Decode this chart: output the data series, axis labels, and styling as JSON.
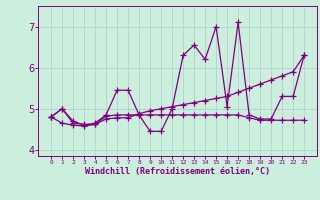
{
  "title": "",
  "xlabel": "Windchill (Refroidissement éolien,°C)",
  "x": [
    0,
    1,
    2,
    3,
    4,
    5,
    6,
    7,
    8,
    9,
    10,
    11,
    12,
    13,
    14,
    15,
    16,
    17,
    18,
    19,
    20,
    21,
    22,
    23
  ],
  "line1": [
    4.8,
    5.0,
    4.7,
    4.6,
    4.65,
    4.85,
    5.45,
    5.45,
    4.85,
    4.45,
    4.45,
    5.0,
    6.3,
    6.55,
    6.2,
    7.0,
    5.05,
    7.1,
    4.85,
    4.75,
    4.75,
    5.3,
    5.3,
    6.3
  ],
  "line2": [
    4.8,
    4.65,
    4.6,
    4.58,
    4.62,
    4.75,
    4.78,
    4.78,
    4.88,
    4.95,
    5.0,
    5.05,
    5.1,
    5.15,
    5.2,
    5.25,
    5.3,
    5.4,
    5.5,
    5.6,
    5.7,
    5.8,
    5.9,
    6.3
  ],
  "line3": [
    4.8,
    5.0,
    4.65,
    4.62,
    4.62,
    4.82,
    4.85,
    4.85,
    4.85,
    4.85,
    4.85,
    4.85,
    4.85,
    4.85,
    4.85,
    4.85,
    4.85,
    4.85,
    4.78,
    4.72,
    4.72,
    4.72,
    4.72,
    4.72
  ],
  "ylim": [
    3.85,
    7.5
  ],
  "yticks": [
    4,
    5,
    6,
    7
  ],
  "color": "#800080",
  "bg_color": "#cceedd",
  "grid_color": "#aacccc",
  "linewidth": 0.9,
  "markersize": 3
}
